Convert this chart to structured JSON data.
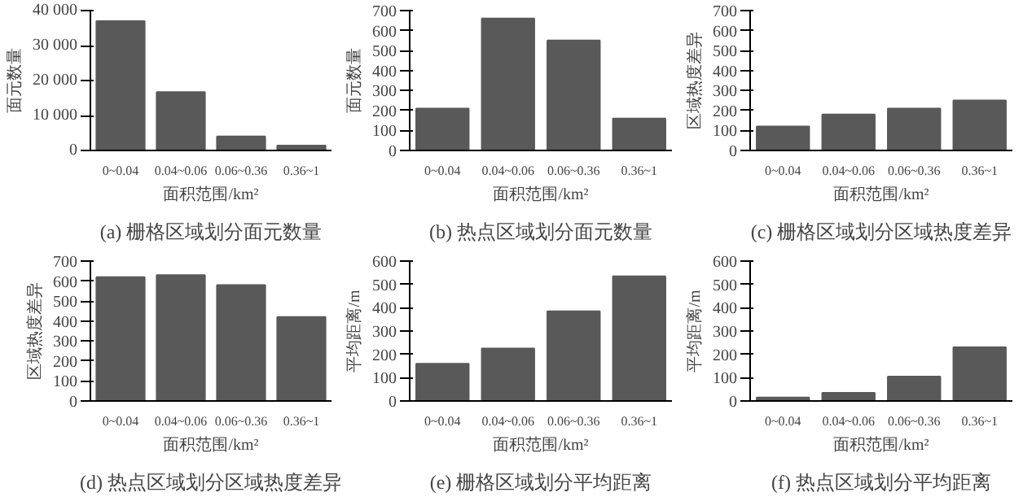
{
  "chart_data": [
    {
      "type": "bar",
      "title": "(a) 栅格区域划分面元数量",
      "xlabel": "面积范围/km²",
      "ylabel": "面元数量",
      "categories": [
        "0~0.04",
        "0.04~0.06",
        "0.06~0.36",
        "0.36~1"
      ],
      "values": [
        37000,
        16700,
        4000,
        1400
      ],
      "color": "#595959",
      "ylim": [
        0,
        40000
      ],
      "yticks": [
        0,
        {
          "value": 10000,
          "label": "10 000"
        },
        {
          "value": 20000,
          "label": "20 000"
        },
        {
          "value": 30000,
          "label": "30 000"
        },
        {
          "value": 40000,
          "label": "40 000"
        }
      ],
      "grid": false
    },
    {
      "type": "bar",
      "title": "(b) 热点区域划分面元数量",
      "xlabel": "面积范围/km²",
      "ylabel": "面元数量",
      "categories": [
        "0~0.04",
        "0.04~0.06",
        "0.06~0.36",
        "0.36~1"
      ],
      "values": [
        210,
        660,
        550,
        160
      ],
      "color": "#595959",
      "ylim": [
        0,
        700
      ],
      "yticks": [
        0,
        100,
        200,
        300,
        400,
        500,
        600,
        700
      ],
      "grid": false
    },
    {
      "type": "bar",
      "title": "(c) 栅格区域划分区域热度差异",
      "xlabel": "面积范围/km²",
      "ylabel": "区域热度差异",
      "categories": [
        "0~0.04",
        "0.04~0.06",
        "0.06~0.36",
        "0.36~1"
      ],
      "values": [
        120,
        180,
        210,
        250
      ],
      "color": "#595959",
      "ylim": [
        0,
        700
      ],
      "yticks": [
        0,
        100,
        200,
        300,
        400,
        500,
        600,
        700
      ],
      "grid": false
    },
    {
      "type": "bar",
      "title": "(d) 热点区域划分区域热度差异",
      "xlabel": "面积范围/km²",
      "ylabel": "区域热度差异",
      "categories": [
        "0~0.04",
        "0.04~0.06",
        "0.06~0.36",
        "0.36~1"
      ],
      "values": [
        620,
        630,
        580,
        420
      ],
      "color": "#595959",
      "ylim": [
        0,
        700
      ],
      "yticks": [
        0,
        100,
        200,
        300,
        400,
        500,
        600,
        700
      ],
      "grid": false
    },
    {
      "type": "bar",
      "title": "(e) 栅格区域划分平均距离",
      "xlabel": "面积范围/km²",
      "ylabel": "平均距离/m",
      "categories": [
        "0~0.04",
        "0.04~0.06",
        "0.06~0.36",
        "0.36~1"
      ],
      "values": [
        160,
        225,
        385,
        535
      ],
      "color": "#595959",
      "ylim": [
        0,
        600
      ],
      "yticks": [
        0,
        100,
        200,
        300,
        400,
        500,
        600
      ],
      "grid": false
    },
    {
      "type": "bar",
      "title": "(f) 热点区域划分平均距离",
      "xlabel": "面积范围/km²",
      "ylabel": "平均距离/m",
      "categories": [
        "0~0.04",
        "0.04~0.06",
        "0.06~0.36",
        "0.36~1"
      ],
      "values": [
        15,
        35,
        105,
        230
      ],
      "color": "#595959",
      "ylim": [
        0,
        600
      ],
      "yticks": [
        0,
        100,
        200,
        300,
        400,
        500,
        600
      ],
      "grid": false
    }
  ]
}
